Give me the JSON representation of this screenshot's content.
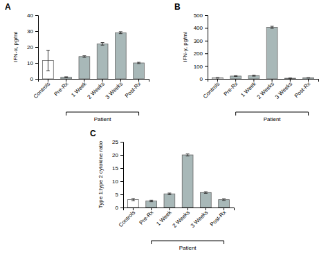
{
  "chart_data": [
    {
      "type": "bar",
      "title": "A",
      "categories": [
        "Controls",
        "Pre-Rx",
        "1 Week",
        "2 Weeks",
        "3 Weeks",
        "Post-Rx"
      ],
      "values": [
        11.5,
        1.0,
        14.0,
        22.0,
        29.0,
        10.0
      ],
      "errors": [
        6.5,
        0.3,
        0.5,
        0.8,
        0.6,
        0.4
      ],
      "colors": [
        "white",
        "#a8b8b8",
        "#a8b8b8",
        "#a8b8b8",
        "#a8b8b8",
        "#a8b8b8"
      ],
      "ylabel": "IFN-α, pg/ml",
      "ylim": [
        0,
        40
      ],
      "yticks": [
        0,
        10,
        20,
        30,
        40
      ],
      "annotation": "Patient"
    },
    {
      "type": "bar",
      "title": "B",
      "categories": [
        "Controls",
        "Pre-Rx",
        "1 Week",
        "2 Weeks",
        "3 Weeks",
        "Post-Rx"
      ],
      "values": [
        8.0,
        22.0,
        25.0,
        405.0,
        5.0,
        8.0
      ],
      "errors": [
        2.0,
        3.0,
        3.5,
        8.0,
        1.0,
        1.5
      ],
      "colors": [
        "white",
        "#a8b8b8",
        "#a8b8b8",
        "#a8b8b8",
        "#a8b8b8",
        "#a8b8b8"
      ],
      "ylabel": "IFN-γ, pg/ml",
      "ylim": [
        0,
        500
      ],
      "yticks": [
        0,
        100,
        200,
        300,
        400,
        500
      ],
      "annotation": "Patient"
    },
    {
      "type": "bar",
      "title": "C",
      "categories": [
        "Controls",
        "Pre-Rx",
        "1 Week",
        "2 Weeks",
        "3 Weeks",
        "Post-Rx"
      ],
      "values": [
        3.0,
        2.5,
        5.2,
        20.0,
        5.7,
        3.0
      ],
      "errors": [
        0.4,
        0.3,
        0.3,
        0.4,
        0.3,
        0.3
      ],
      "colors": [
        "white",
        "#a8b8b8",
        "#a8b8b8",
        "#a8b8b8",
        "#a8b8b8",
        "#a8b8b8"
      ],
      "ylabel": "Type 1:type 2 cytokine ratio",
      "ylim": [
        0,
        25
      ],
      "yticks": [
        0,
        5,
        10,
        15,
        20,
        25
      ],
      "annotation": "Patient"
    }
  ]
}
